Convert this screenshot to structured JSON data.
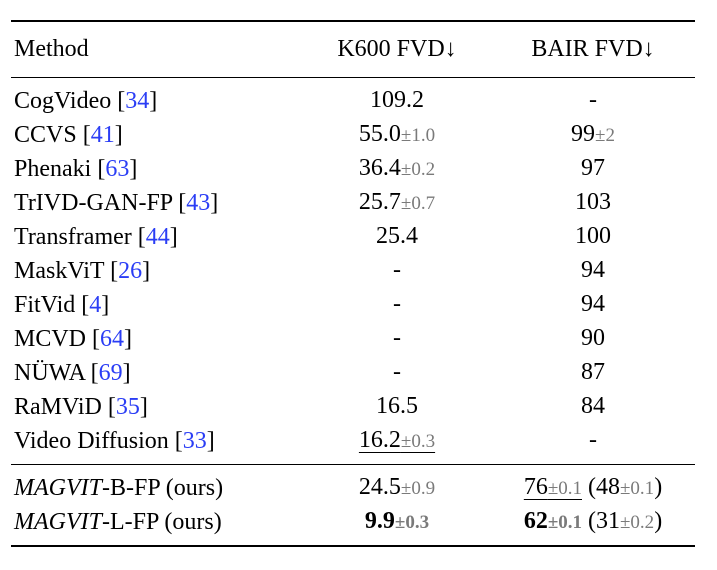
{
  "columns": {
    "method": "Method",
    "k600": "K600 FVD↓",
    "bair": "BAIR FVD↓"
  },
  "rows": [
    {
      "name": "CogVideo ",
      "ref": "34",
      "k600": {
        "value": "109.2",
        "pm": ""
      },
      "bair": {
        "value": "-",
        "pm": ""
      }
    },
    {
      "name": "CCVS ",
      "ref": "41",
      "k600": {
        "value": "55.0",
        "pm": "±1.0"
      },
      "bair": {
        "value": "99",
        "pm": "±2"
      }
    },
    {
      "name": "Phenaki ",
      "ref": "63",
      "k600": {
        "value": "36.4",
        "pm": "±0.2"
      },
      "bair": {
        "value": "97",
        "pm": ""
      }
    },
    {
      "name": "TrIVD-GAN-FP ",
      "ref": "43",
      "k600": {
        "value": "25.7",
        "pm": "±0.7"
      },
      "bair": {
        "value": "103",
        "pm": ""
      }
    },
    {
      "name": "Transframer ",
      "ref": "44",
      "k600": {
        "value": "25.4",
        "pm": ""
      },
      "bair": {
        "value": "100",
        "pm": ""
      }
    },
    {
      "name": "MaskViT ",
      "ref": "26",
      "k600": {
        "value": "-",
        "pm": ""
      },
      "bair": {
        "value": "94",
        "pm": ""
      }
    },
    {
      "name": "FitVid ",
      "ref": "4",
      "k600": {
        "value": "-",
        "pm": ""
      },
      "bair": {
        "value": "94",
        "pm": ""
      }
    },
    {
      "name": "MCVD ",
      "ref": "64",
      "k600": {
        "value": "-",
        "pm": ""
      },
      "bair": {
        "value": "90",
        "pm": ""
      }
    },
    {
      "name": "NÜWA ",
      "ref": "69",
      "k600": {
        "value": "-",
        "pm": ""
      },
      "bair": {
        "value": "87",
        "pm": ""
      }
    },
    {
      "name": "RaMViD ",
      "ref": "35",
      "k600": {
        "value": "16.5",
        "pm": ""
      },
      "bair": {
        "value": "84",
        "pm": ""
      }
    },
    {
      "name": "Video Diffusion ",
      "ref": "33",
      "k600": {
        "value": "16.2",
        "pm": "±0.3"
      },
      "bair": {
        "value": "-",
        "pm": ""
      }
    }
  ],
  "ours": [
    {
      "name_italic": "MAGVIT",
      "name_rest": "-B-FP (ours)",
      "k600": {
        "value": "24.5",
        "pm": "±0.9"
      },
      "bair": {
        "value": "76",
        "pm": "±0.1",
        "paren_open": " (48",
        "paren_pm": "±0.1",
        "paren_close": ")"
      }
    },
    {
      "name_italic": "MAGVIT",
      "name_rest": "-L-FP (ours)",
      "k600": {
        "value": "9.9",
        "pm": "±0.3"
      },
      "bair": {
        "value": "62",
        "pm": "±0.1",
        "paren_open": " (31",
        "paren_pm": "±0.2",
        "paren_close": ")"
      }
    }
  ],
  "ref_open": "[",
  "ref_close": "]",
  "colors": {
    "ref": "#2a3df5",
    "pm": "#7a7a7a"
  }
}
